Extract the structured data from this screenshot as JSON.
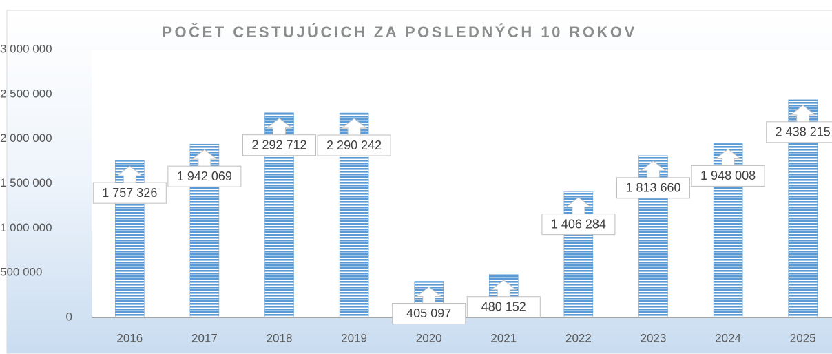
{
  "chart_data": {
    "type": "bar",
    "title": "POČET CESTUJÚCICH ZA POSLEDNÝCH 10 ROKOV",
    "categories": [
      "2016",
      "2017",
      "2018",
      "2019",
      "2020",
      "2021",
      "2022",
      "2023",
      "2024",
      "2025"
    ],
    "values": [
      1757326,
      1942069,
      2292712,
      2290242,
      405097,
      480152,
      1406284,
      1813660,
      1948008,
      2438215
    ],
    "value_labels": [
      "1 757 326",
      "1 942 069",
      "2 292 712",
      "2 290 242",
      "405 097",
      "480 152",
      "1 406 284",
      "1 813 660",
      "1 948 008",
      "2 438 215"
    ],
    "color": "#5b9bd5",
    "ylim": [
      0,
      3000000
    ],
    "yticks": [
      0,
      {
        "value": 500000,
        "label": "500 000"
      },
      {
        "value": 1000000,
        "label": "1 000 000"
      },
      {
        "value": 1500000,
        "label": "1 500 000"
      },
      {
        "value": 2000000,
        "label": "2 000 000"
      },
      {
        "value": 2500000,
        "label": "2 500 000"
      },
      {
        "value": 3000000,
        "label": "3 000 000"
      }
    ],
    "grid": false
  }
}
